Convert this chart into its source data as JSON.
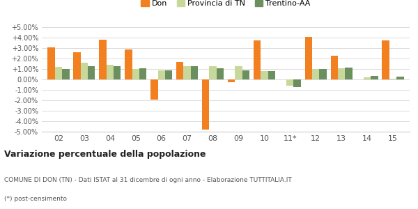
{
  "years": [
    "02",
    "03",
    "04",
    "05",
    "06",
    "07",
    "08",
    "09",
    "10",
    "11*",
    "12",
    "13",
    "14",
    "15"
  ],
  "don": [
    3.1,
    2.6,
    3.8,
    2.85,
    -1.9,
    1.65,
    -4.8,
    -0.25,
    3.75,
    0.0,
    4.05,
    2.3,
    0.0,
    3.75
  ],
  "provincia": [
    1.2,
    1.6,
    1.4,
    1.0,
    0.9,
    1.25,
    1.25,
    1.25,
    0.8,
    -0.6,
    1.0,
    1.05,
    0.2,
    0.1
  ],
  "trentino": [
    1.0,
    1.25,
    1.25,
    1.05,
    0.9,
    1.25,
    1.1,
    0.9,
    0.8,
    -0.7,
    1.0,
    1.15,
    0.35,
    0.25
  ],
  "don_color": "#f28020",
  "provincia_color": "#c8d89a",
  "trentino_color": "#6b8f5e",
  "bg_color": "#ffffff",
  "grid_color": "#cccccc",
  "title": "Variazione percentuale della popolazione",
  "caption1": "COMUNE DI DON (TN) - Dati ISTAT al 31 dicembre di ogni anno - Elaborazione TUTTITALIA.IT",
  "caption2": "(*) post-censimento",
  "legend_labels": [
    "Don",
    "Provincia di TN",
    "Trentino-AA"
  ],
  "ylim": [
    -5.0,
    5.0
  ],
  "yticks": [
    -5.0,
    -4.0,
    -3.0,
    -2.0,
    -1.0,
    0.0,
    1.0,
    2.0,
    3.0,
    4.0,
    5.0
  ]
}
